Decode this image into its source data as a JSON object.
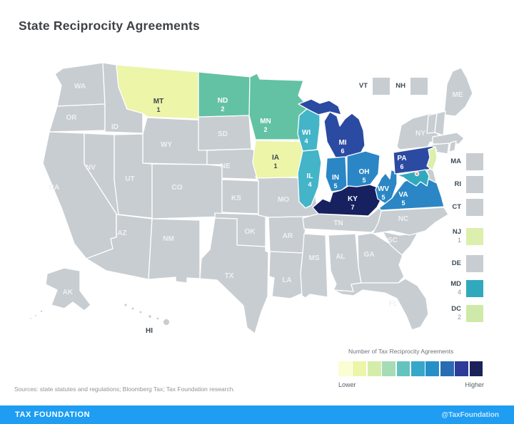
{
  "title": "State Reciprocity Agreements",
  "chart_data": {
    "type": "heatmap",
    "subtype": "us-state-choropleth",
    "title": "State Reciprocity Agreements",
    "legend_title": "Number of Tax Reciprocity Agreements",
    "legend_scale_ends": [
      "Lower",
      "Higher"
    ],
    "legend_colors": [
      "#fbfdd3",
      "#ecf5a8",
      "#d5edaa",
      "#a6dbb5",
      "#63c3bf",
      "#36a7c8",
      "#2590c7",
      "#2a6cb4",
      "#2c3b99",
      "#1b2259"
    ],
    "values": {
      "MT": 1,
      "ND": 2,
      "MN": 2,
      "IA": 1,
      "WI": 4,
      "IL": 4,
      "IN": 5,
      "OH": 5,
      "MI": 6,
      "PA": 6,
      "KY": 7,
      "WV": 5,
      "VA": 5,
      "NJ": 1,
      "MD": 4,
      "DC": 2
    },
    "states_without_agreements_color": "#c8cdd1"
  },
  "map": {
    "default_fill": "#c8cdd1",
    "dc_dot_color": "#ef9e99",
    "states": {
      "WA": {
        "abbr": "WA"
      },
      "OR": {
        "abbr": "OR"
      },
      "CA": {
        "abbr": "CA"
      },
      "NV": {
        "abbr": "NV"
      },
      "ID": {
        "abbr": "ID"
      },
      "WY": {
        "abbr": "WY"
      },
      "UT": {
        "abbr": "UT"
      },
      "CO": {
        "abbr": "CO"
      },
      "AZ": {
        "abbr": "AZ"
      },
      "NM": {
        "abbr": "NM"
      },
      "SD": {
        "abbr": "SD"
      },
      "NE": {
        "abbr": "NE"
      },
      "KS": {
        "abbr": "KS"
      },
      "OK": {
        "abbr": "OK"
      },
      "TX": {
        "abbr": "TX"
      },
      "MO": {
        "abbr": "MO"
      },
      "AR": {
        "abbr": "AR"
      },
      "LA": {
        "abbr": "LA"
      },
      "MS": {
        "abbr": "MS"
      },
      "TN": {
        "abbr": "TN"
      },
      "AL": {
        "abbr": "AL"
      },
      "GA": {
        "abbr": "GA"
      },
      "FL": {
        "abbr": "FL"
      },
      "SC": {
        "abbr": "SC"
      },
      "NC": {
        "abbr": "NC"
      },
      "NY": {
        "abbr": "NY"
      },
      "ME": {
        "abbr": "ME"
      },
      "AK": {
        "abbr": "AK"
      },
      "HI": {
        "abbr": "HI"
      },
      "MT": {
        "abbr": "MT",
        "value": "1",
        "fill": "#ecf5a8",
        "label_color": "#3c4850"
      },
      "ND": {
        "abbr": "ND",
        "value": "2",
        "fill": "#63c2a4",
        "label_color": "#ffffff"
      },
      "MN": {
        "abbr": "MN",
        "value": "2",
        "fill": "#63c2a4",
        "label_color": "#ffffff"
      },
      "IA": {
        "abbr": "IA",
        "value": "1",
        "fill": "#ecf5a8",
        "label_color": "#3c4850"
      },
      "WI": {
        "abbr": "WI",
        "value": "4",
        "fill": "#44b4c8",
        "label_color": "#ffffff"
      },
      "IL": {
        "abbr": "IL",
        "value": "4",
        "fill": "#44b4c8",
        "label_color": "#ffffff"
      },
      "IN": {
        "abbr": "IN",
        "value": "5",
        "fill": "#2b86c5",
        "label_color": "#ffffff"
      },
      "OH": {
        "abbr": "OH",
        "value": "5",
        "fill": "#2b86c5",
        "label_color": "#ffffff"
      },
      "WV": {
        "abbr": "WV",
        "value": "5",
        "fill": "#2b86c5",
        "label_color": "#ffffff"
      },
      "VA": {
        "abbr": "VA",
        "value": "5",
        "fill": "#2b86c5",
        "label_color": "#ffffff"
      },
      "MI": {
        "abbr": "MI",
        "value": "6",
        "fill": "#2b4aa2",
        "label_color": "#ffffff"
      },
      "PA": {
        "abbr": "PA",
        "value": "6",
        "fill": "#2b4aa2",
        "label_color": "#ffffff"
      },
      "KY": {
        "abbr": "KY",
        "value": "7",
        "fill": "#17215f",
        "label_color": "#ffffff"
      },
      "NJ": {
        "fill": "#dcefad"
      },
      "MD": {
        "fill": "#31a9bd"
      }
    }
  },
  "side_chips": [
    {
      "abbr": "VT",
      "value": "",
      "square_css": "background:#c8cdd1"
    },
    {
      "abbr": "NH",
      "value": "",
      "square_css": "background:#c8cdd1"
    },
    {
      "abbr": "MA",
      "value": "",
      "square_css": "background:#c8cdd1"
    },
    {
      "abbr": "RI",
      "value": "",
      "square_css": "background:#c8cdd1"
    },
    {
      "abbr": "CT",
      "value": "",
      "square_css": "background:#c8cdd1"
    },
    {
      "abbr": "NJ",
      "value": "1",
      "square_css": "background:#dcefad"
    },
    {
      "abbr": "DE",
      "value": "",
      "square_css": "background:#c8cdd1"
    },
    {
      "abbr": "MD",
      "value": "4",
      "square_css": "background:#31a9bd"
    },
    {
      "abbr": "DC",
      "value": "2",
      "square_css": "background:#cfeaa8"
    }
  ],
  "legend": {
    "title": "Number of Tax Reciprocity Agreements",
    "colors": [
      "#fbfdd3",
      "#ecf5a8",
      "#d5edaa",
      "#a6dbb5",
      "#63c3bf",
      "#36a7c8",
      "#2590c7",
      "#2a6cb4",
      "#2c3b99",
      "#1b2259"
    ],
    "low_label": "Lower",
    "high_label": "Higher"
  },
  "source_note": "Sources: state statutes and regulations; Bloomberg Tax; Tax Foundation research.",
  "footer": {
    "brand": "TAX FOUNDATION",
    "handle": "@TaxFoundation",
    "bar_css": "background:#1e9df2"
  }
}
